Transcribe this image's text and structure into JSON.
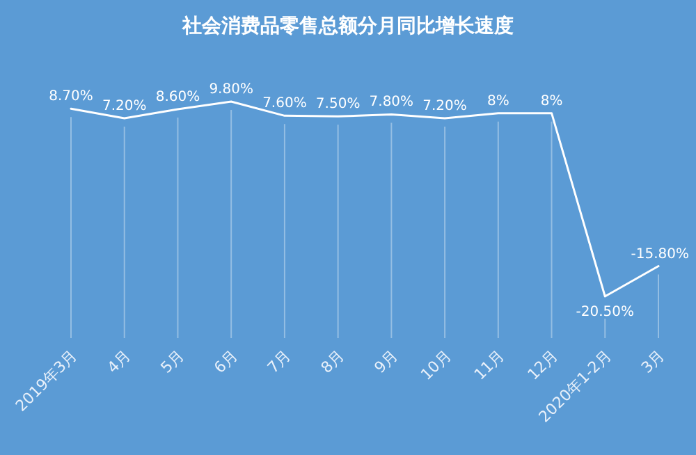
{
  "chart_data": {
    "type": "line",
    "title": "社会消费品零售总额分月同比增长速度",
    "categories": [
      "2019年3月",
      "4月",
      "5月",
      "6月",
      "7月",
      "8月",
      "9月",
      "10月",
      "11月",
      "12月",
      "2020年1-2月",
      "3月"
    ],
    "series": [
      {
        "color": "#ffffff",
        "values": [
          8.7,
          7.2,
          8.6,
          9.8,
          7.6,
          7.5,
          7.8,
          7.2,
          8,
          8,
          -20.5,
          -15.8
        ],
        "value_labels": [
          "8.70%",
          "7.20%",
          "8.60%",
          "9.80%",
          "7.60%",
          "7.50%",
          "7.80%",
          "7.20%",
          "8%",
          "8%",
          "-20.50%",
          "-15.80%"
        ]
      }
    ],
    "grid": "x",
    "marker": "none",
    "line_style": "solid"
  }
}
